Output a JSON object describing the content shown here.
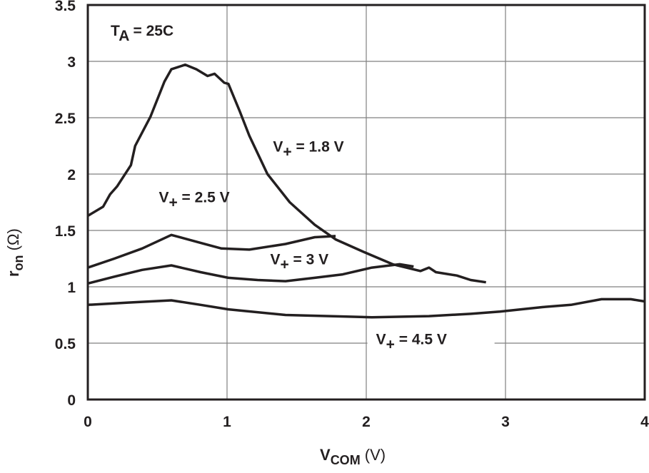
{
  "chart_data": {
    "type": "line",
    "xlabel": {
      "base": "V",
      "sub": "COM",
      "rest": " (V)"
    },
    "ylabel": {
      "base": "r",
      "sub": "on",
      "rest": " (Ω)"
    },
    "xlim": [
      0,
      4
    ],
    "ylim": [
      0,
      3.5
    ],
    "xticks": [
      0,
      1,
      2,
      3,
      4
    ],
    "yticks": [
      0,
      0.5,
      1,
      1.5,
      2,
      2.5,
      3,
      3.5
    ],
    "grid": true,
    "line_color": "#231f20",
    "grid_color": "#808080",
    "annotation": {
      "base": "T",
      "sub": "A",
      "rest": " = 25C"
    },
    "series": [
      {
        "name": {
          "base": "V",
          "sub": "+",
          "rest": " = 1.8 V"
        },
        "x": [
          0,
          0.11,
          0.16,
          0.21,
          0.31,
          0.34,
          0.45,
          0.55,
          0.6,
          0.7,
          0.78,
          0.86,
          0.91,
          0.98,
          1.01,
          1.09,
          1.16,
          1.29,
          1.45,
          1.63,
          1.78,
          1.98,
          2.19,
          2.39,
          2.45,
          2.5,
          2.65,
          2.75,
          2.86
        ],
        "y": [
          1.63,
          1.71,
          1.82,
          1.89,
          2.08,
          2.25,
          2.51,
          2.82,
          2.93,
          2.97,
          2.93,
          2.87,
          2.89,
          2.81,
          2.8,
          2.56,
          2.34,
          2.0,
          1.75,
          1.55,
          1.42,
          1.31,
          1.2,
          1.14,
          1.17,
          1.13,
          1.1,
          1.06,
          1.04
        ]
      },
      {
        "name": {
          "base": "V",
          "sub": "+",
          "rest": " = 2.5 V"
        },
        "x": [
          0,
          0.19,
          0.39,
          0.6,
          0.81,
          0.96,
          1.16,
          1.42,
          1.63,
          1.78
        ],
        "y": [
          1.17,
          1.25,
          1.34,
          1.46,
          1.39,
          1.34,
          1.33,
          1.38,
          1.44,
          1.45
        ]
      },
      {
        "name": {
          "base": "V",
          "sub": "+",
          "rest": " = 3 V"
        },
        "x": [
          0,
          0.19,
          0.39,
          0.6,
          0.81,
          1.01,
          1.22,
          1.42,
          1.63,
          1.83,
          2.04,
          2.24,
          2.34
        ],
        "y": [
          1.03,
          1.09,
          1.15,
          1.19,
          1.13,
          1.08,
          1.06,
          1.05,
          1.08,
          1.11,
          1.17,
          1.2,
          1.18
        ]
      },
      {
        "name": {
          "base": "V",
          "sub": "+",
          "rest": " = 4.5 V"
        },
        "x": [
          0,
          0.29,
          0.6,
          0.81,
          1.01,
          1.42,
          2.04,
          2.45,
          2.75,
          2.96,
          3.27,
          3.47,
          3.69,
          3.9,
          4.0
        ],
        "y": [
          0.84,
          0.86,
          0.88,
          0.84,
          0.8,
          0.75,
          0.73,
          0.74,
          0.76,
          0.78,
          0.82,
          0.84,
          0.89,
          0.89,
          0.87
        ]
      }
    ],
    "series_label_anchor": [
      [
        1.33,
        2.2
      ],
      [
        0.51,
        1.75
      ],
      [
        1.31,
        1.2
      ],
      [
        2.07,
        0.49
      ]
    ]
  }
}
